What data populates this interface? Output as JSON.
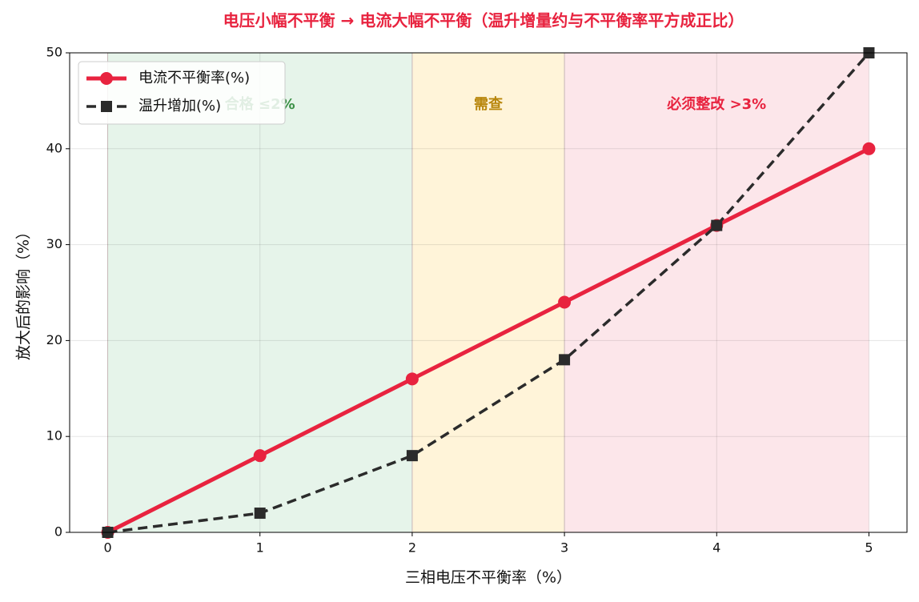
{
  "chart_data": {
    "type": "line",
    "title": "电压小幅不平衡 → 电流大幅不平衡（温升增量约与不平衡率平方成正比）",
    "x_label": "三相电压不平衡率（%）",
    "y_label": "放大后的影响（%）",
    "x": [
      0,
      1,
      2,
      3,
      4,
      5
    ],
    "series": [
      {
        "name": "电流不平衡率(%)",
        "color": "#e8233f",
        "marker": "circle",
        "dash": false,
        "values": [
          0,
          8,
          16,
          24,
          32,
          40
        ]
      },
      {
        "name": "温升增加(%)",
        "color": "#2b2b2b",
        "marker": "square",
        "dash": true,
        "values": [
          0,
          2,
          8,
          18,
          32,
          50
        ]
      }
    ],
    "regions": [
      {
        "x": [
          0,
          2
        ],
        "label": "合格 ≤2%",
        "color": "#e6f4ea",
        "label_color": "#3a8f45"
      },
      {
        "x": [
          2,
          3
        ],
        "label": "需查",
        "color": "#fff4d9",
        "label_color": "#b8860b"
      },
      {
        "x": [
          3,
          5
        ],
        "label": "必须整改 >3%",
        "color": "#fce6ea",
        "label_color": "#e8233f"
      }
    ],
    "xlim": [
      -0.25,
      5.25
    ],
    "xticks": [
      0,
      1,
      2,
      3,
      4,
      5
    ],
    "ylim": [
      0,
      50
    ],
    "yticks": [
      0,
      10,
      20,
      30,
      40,
      50
    ],
    "grid": true,
    "legend": "upper-left"
  }
}
